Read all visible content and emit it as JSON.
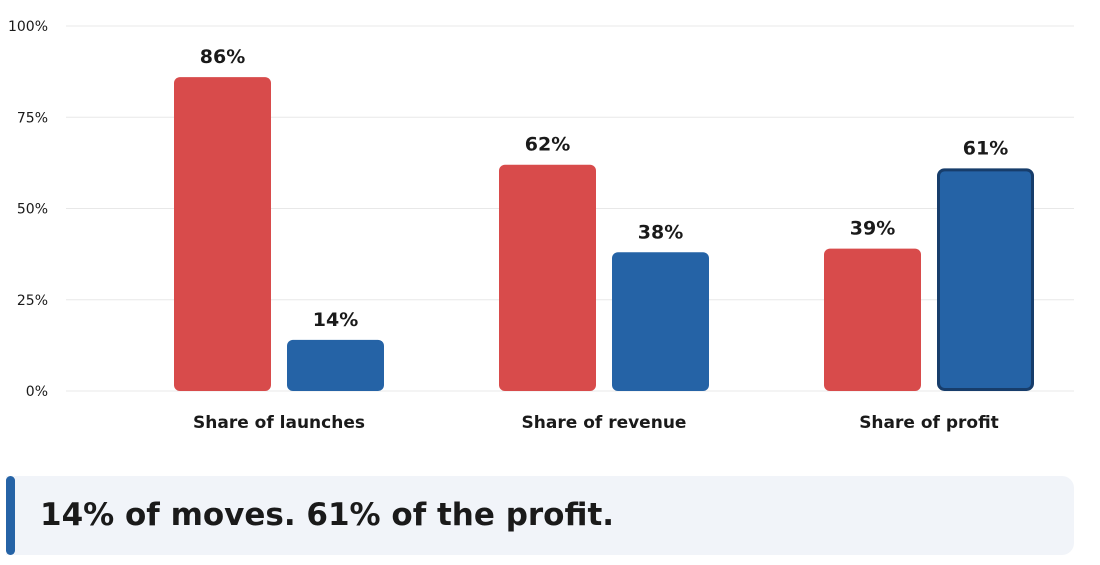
{
  "chart_data": {
    "type": "bar",
    "categories": [
      "Share of launches",
      "Share of revenue",
      "Share of profit"
    ],
    "series": [
      {
        "values": [
          86,
          62,
          39
        ],
        "color": "#d84b4b",
        "value_labels": [
          "86%",
          "62%",
          "39%"
        ]
      },
      {
        "values": [
          14,
          38,
          61
        ],
        "color": "#2563a6",
        "value_labels": [
          "14%",
          "38%",
          "61%"
        ]
      }
    ],
    "highlight": {
      "series": 1,
      "category": 2,
      "outline_color": "#173d6b"
    },
    "ylim": [
      0,
      100
    ],
    "yticks": [
      0,
      25,
      50,
      75,
      100
    ],
    "ytick_labels": [
      "0%",
      "25%",
      "50%",
      "75%",
      "100%"
    ],
    "grid": true,
    "xlabel": "",
    "ylabel": ""
  },
  "callout": {
    "text": "14% of moves. 61% of the profit.",
    "accent_color": "#2563a6"
  }
}
